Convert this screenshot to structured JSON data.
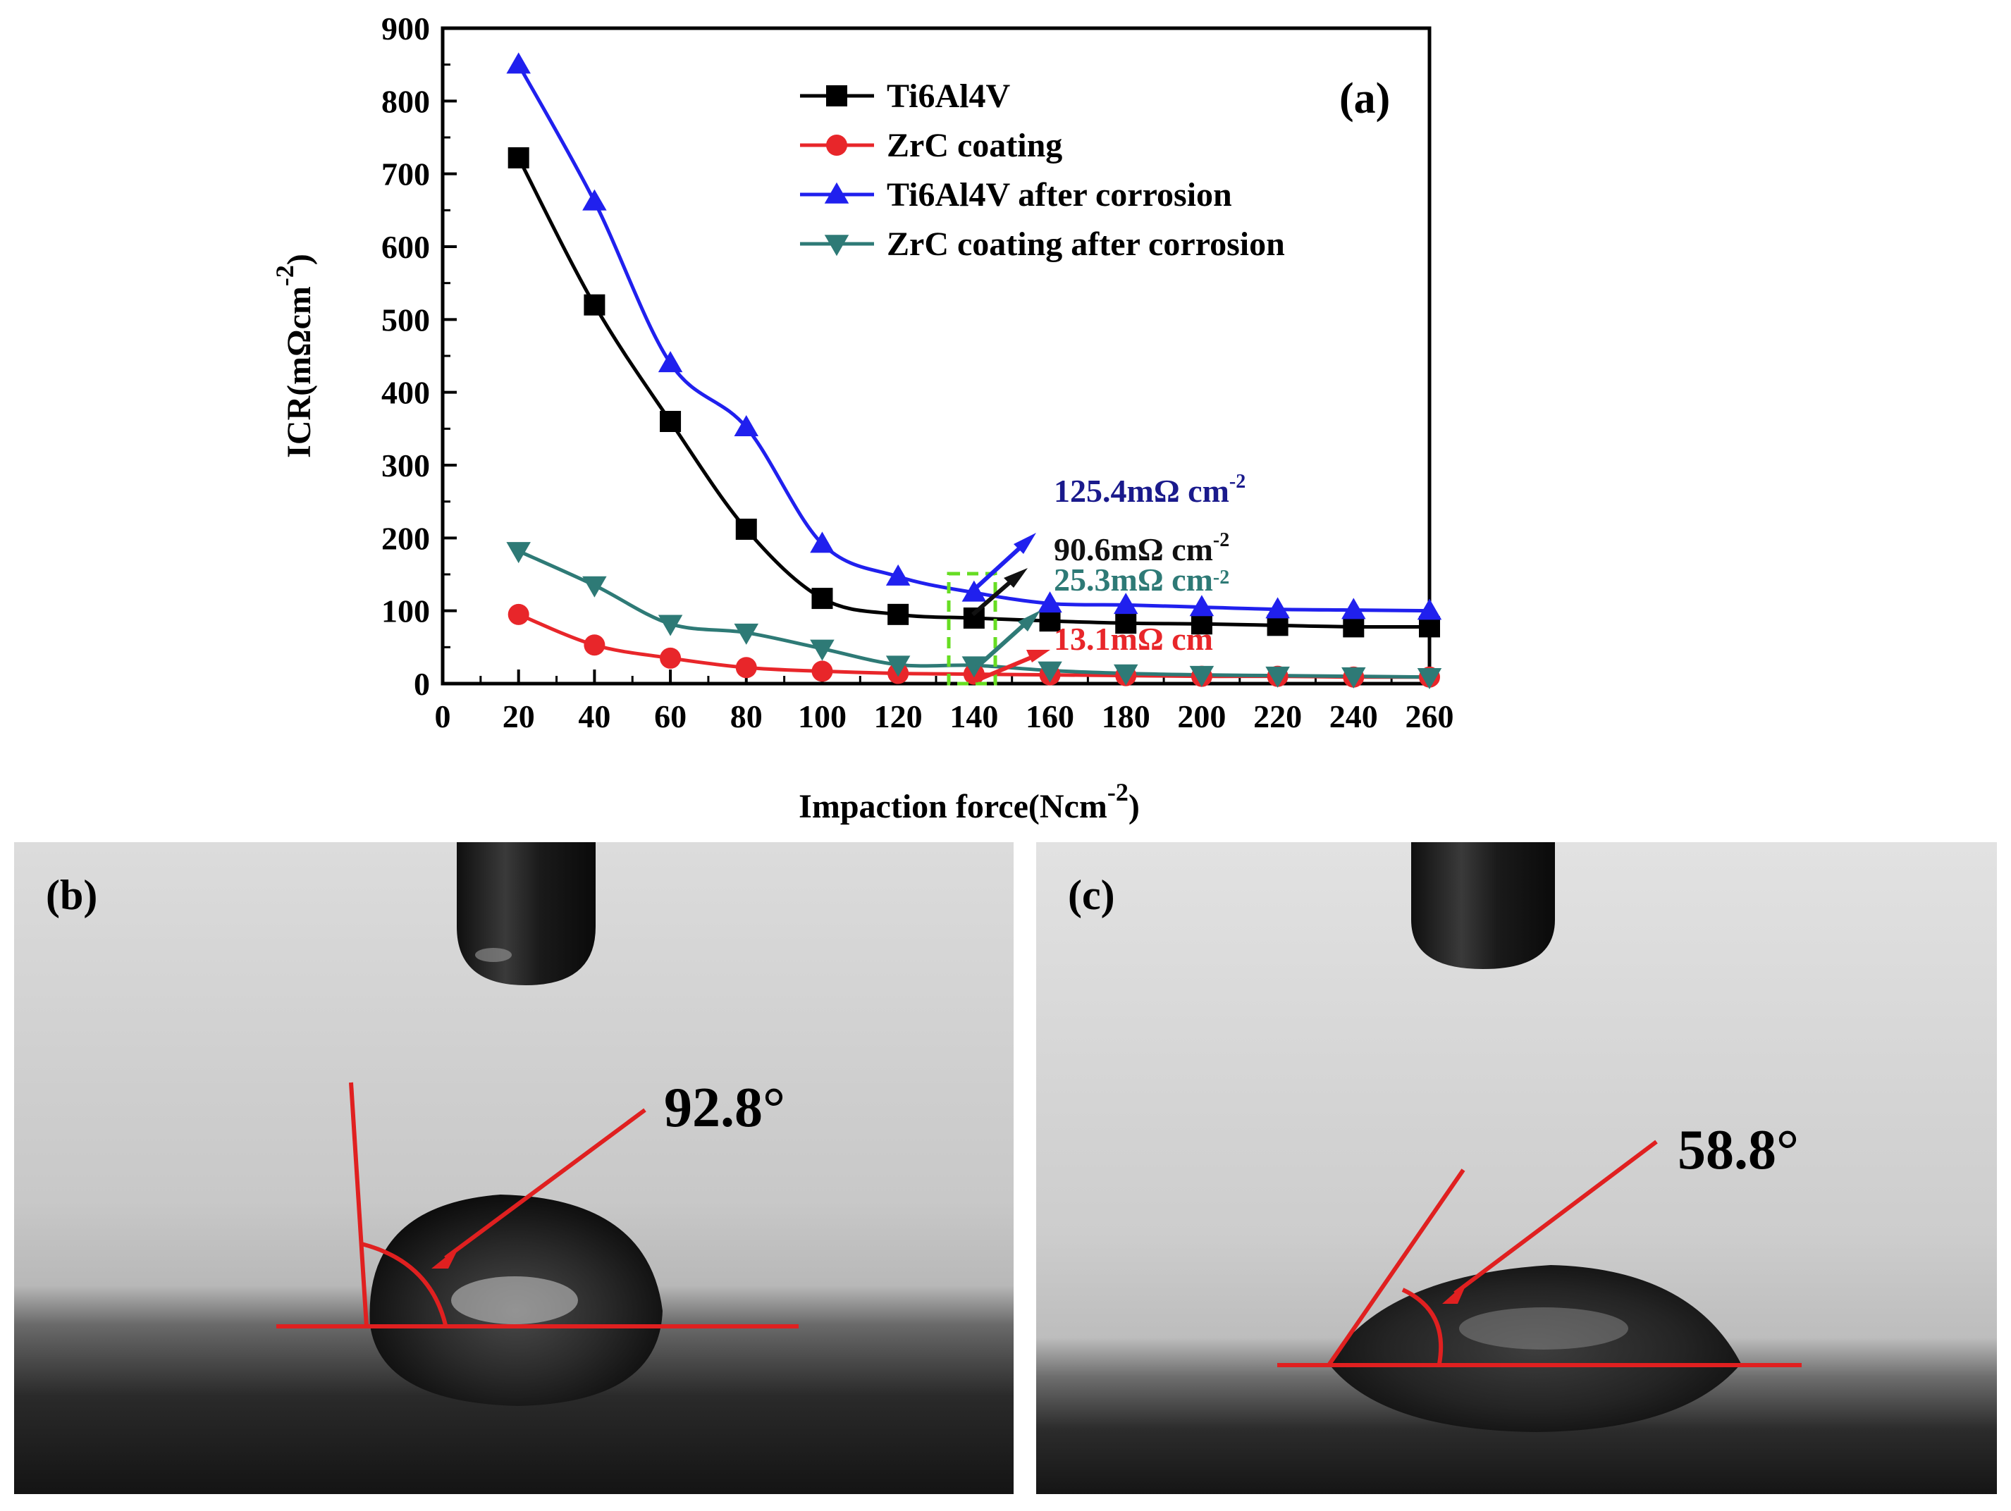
{
  "chart_data": {
    "type": "line",
    "panel_label": "(a)",
    "xlabel": "Impaction force(Ncm",
    "xlabel_sup": "-2",
    "xlabel_close": ")",
    "ylabel": "ICR(mΩcm",
    "ylabel_sup": "-2",
    "ylabel_close": ")",
    "xlim": [
      0,
      260
    ],
    "ylim": [
      0,
      900
    ],
    "xticks": [
      0,
      20,
      40,
      60,
      80,
      100,
      120,
      140,
      160,
      180,
      200,
      220,
      240,
      260
    ],
    "yticks": [
      0,
      100,
      200,
      300,
      400,
      500,
      600,
      700,
      800,
      900
    ],
    "x": [
      20,
      40,
      60,
      80,
      100,
      120,
      140,
      160,
      180,
      200,
      220,
      240,
      260
    ],
    "series": [
      {
        "name": "Ti6Al4V",
        "marker": "square",
        "color": "#000000",
        "values": [
          722,
          520,
          360,
          212,
          117,
          95,
          90,
          86,
          83,
          82,
          80,
          78,
          78
        ]
      },
      {
        "name": "ZrC coating",
        "marker": "circle",
        "color": "#e8262a",
        "values": [
          95,
          53,
          35,
          22,
          17,
          14,
          13,
          12,
          11,
          10,
          10,
          9,
          9
        ]
      },
      {
        "name": "Ti6Al4V after corrosion",
        "marker": "triangle-up",
        "color": "#2020ee",
        "values": [
          850,
          662,
          440,
          352,
          192,
          147,
          125,
          110,
          108,
          105,
          102,
          101,
          100
        ]
      },
      {
        "name": "ZrC coating after corrosion",
        "marker": "triangle-down",
        "color": "#2e7a76",
        "values": [
          182,
          135,
          82,
          70,
          48,
          26,
          25,
          18,
          14,
          12,
          11,
          10,
          9
        ]
      }
    ],
    "annotations": [
      {
        "value": "125.4",
        "unit": "mΩ cm",
        "sup": "-2",
        "color": "#1a1a8c"
      },
      {
        "value": "90.6",
        "unit": "mΩ cm",
        "sup": "-2",
        "color": "#111111"
      },
      {
        "value": "25.3",
        "unit": "mΩ cm",
        "sup": "-2",
        "color": "#2e7a76"
      },
      {
        "value": "13.1",
        "unit": "mΩ cm",
        "sup": "",
        "color": "#e8262a"
      }
    ],
    "highlight_box_color": "#66dd22",
    "legend_position": "top-right"
  },
  "photos": {
    "b": {
      "label": "(b)",
      "angle": "92.8°"
    },
    "c": {
      "label": "(c)",
      "angle": "58.8°"
    }
  },
  "colors": {
    "angle_lines": "#e02020"
  }
}
